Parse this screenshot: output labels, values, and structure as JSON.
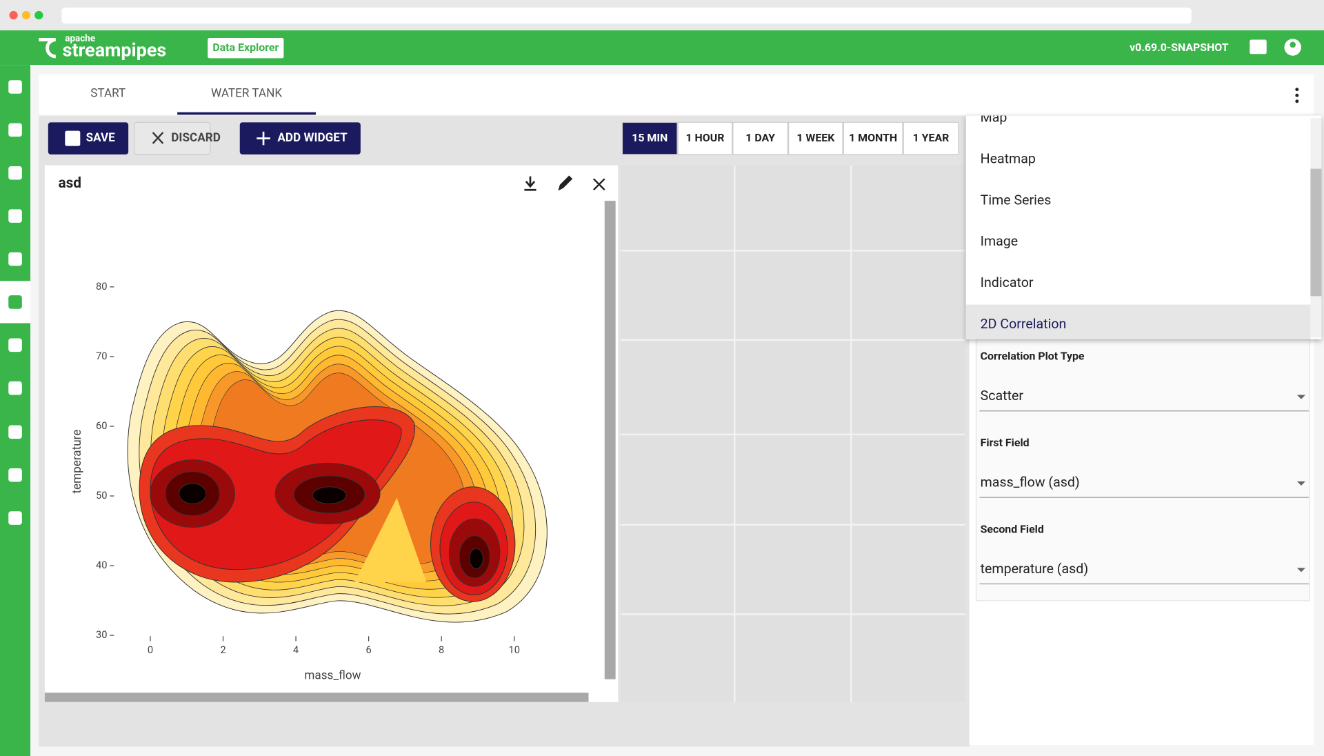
{
  "header": {
    "brand_small": "apache",
    "brand": "streampipes",
    "module": "Data Explorer",
    "version": "v0.69.0-SNAPSHOT"
  },
  "tabs": [
    "START",
    "WATER TANK"
  ],
  "toolbar": {
    "buttons": [
      "SAVE",
      "DISCARD",
      "ADD WIDGET"
    ],
    "time_ranges": [
      "15 MIN",
      "1 HOUR",
      "1 DAY",
      "1 WEEK",
      "1 MONTH",
      "1 YEAR"
    ]
  },
  "widget_title": "asd",
  "chart_data": {
    "type": "contour",
    "xlabel": "mass_flow",
    "ylabel": "temperature",
    "xlim": [
      0,
      10
    ],
    "ylim": [
      30,
      80
    ],
    "xticks": [
      0,
      2,
      4,
      6,
      8,
      10
    ],
    "yticks": [
      30,
      40,
      50,
      60,
      70,
      80
    ]
  },
  "menu": {
    "items": [
      "Map",
      "Heatmap",
      "Time Series",
      "Image",
      "Indicator",
      "2D Correlation"
    ],
    "selected": 5
  },
  "settings": {
    "fields": [
      {
        "label": "Correlation Plot Type",
        "value": "Scatter"
      },
      {
        "label": "First Field",
        "value": "mass_flow (asd)"
      },
      {
        "label": "Second Field",
        "value": "temperature (asd)"
      }
    ]
  }
}
